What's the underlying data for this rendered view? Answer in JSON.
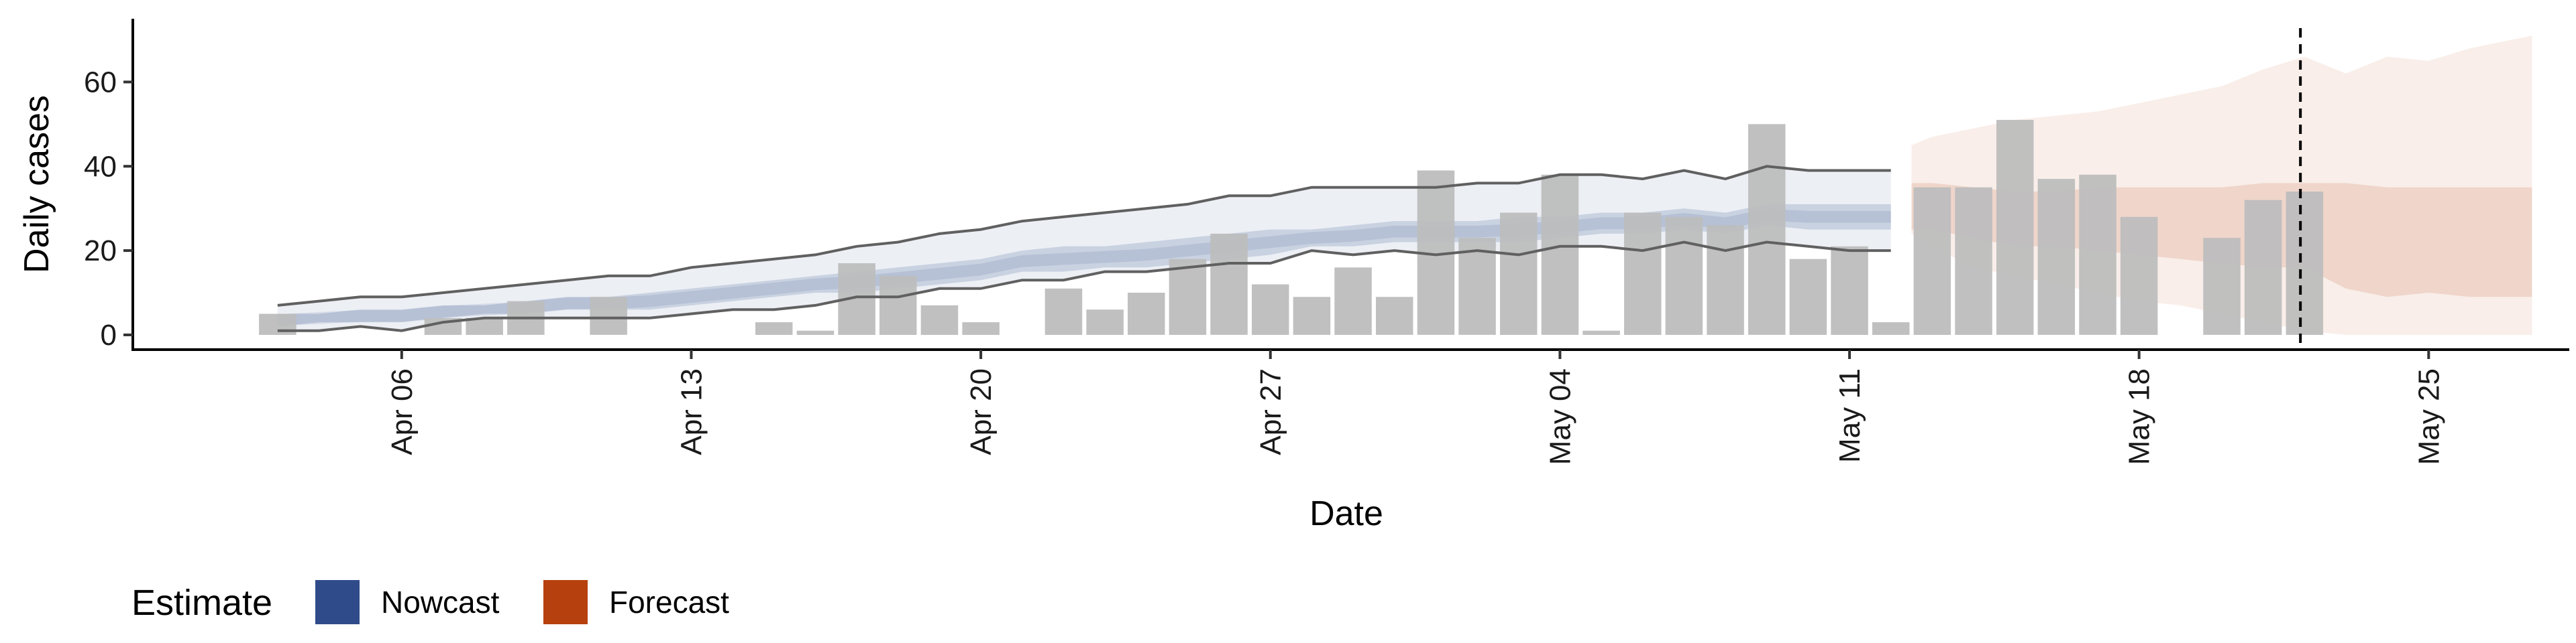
{
  "chart_data": {
    "type": "bar",
    "xlabel": "Date",
    "ylabel": "Daily cases",
    "ylim": [
      -3.5,
      75
    ],
    "yticks": [
      0,
      20,
      40,
      60
    ],
    "xticks": [
      {
        "day": 6,
        "label": "Apr 06"
      },
      {
        "day": 13,
        "label": "Apr 13"
      },
      {
        "day": 20,
        "label": "Apr 20"
      },
      {
        "day": 27,
        "label": "Apr 27"
      },
      {
        "day": 34,
        "label": "May 04"
      },
      {
        "day": 41,
        "label": "May 11"
      },
      {
        "day": 48,
        "label": "May 18"
      },
      {
        "day": 55,
        "label": "May 25"
      }
    ],
    "x_range_days": [
      -0.5,
      58.4
    ],
    "forecast_date_day": 51.9,
    "grid": false,
    "legend_position": "bottom-left",
    "colors": {
      "bars": "#bdbdbd",
      "nowcast": "#2f4b8a",
      "forecast": "#b7410e",
      "outline": "#606060",
      "vline": "#000000"
    },
    "daily_cases": [
      {
        "day": 3,
        "value": 5
      },
      {
        "day": 4,
        "value": 0
      },
      {
        "day": 5,
        "value": 0
      },
      {
        "day": 6,
        "value": 0
      },
      {
        "day": 7,
        "value": 4
      },
      {
        "day": 8,
        "value": 4
      },
      {
        "day": 9,
        "value": 8
      },
      {
        "day": 10,
        "value": 0
      },
      {
        "day": 11,
        "value": 9
      },
      {
        "day": 12,
        "value": 0
      },
      {
        "day": 13,
        "value": 0
      },
      {
        "day": 14,
        "value": 0
      },
      {
        "day": 15,
        "value": 3
      },
      {
        "day": 16,
        "value": 1
      },
      {
        "day": 17,
        "value": 17
      },
      {
        "day": 18,
        "value": 14
      },
      {
        "day": 19,
        "value": 7
      },
      {
        "day": 20,
        "value": 3
      },
      {
        "day": 21,
        "value": 0
      },
      {
        "day": 22,
        "value": 11
      },
      {
        "day": 23,
        "value": 6
      },
      {
        "day": 24,
        "value": 10
      },
      {
        "day": 25,
        "value": 18
      },
      {
        "day": 26,
        "value": 24
      },
      {
        "day": 27,
        "value": 12
      },
      {
        "day": 28,
        "value": 9
      },
      {
        "day": 29,
        "value": 16
      },
      {
        "day": 30,
        "value": 9
      },
      {
        "day": 31,
        "value": 39
      },
      {
        "day": 32,
        "value": 23
      },
      {
        "day": 33,
        "value": 29
      },
      {
        "day": 34,
        "value": 38
      },
      {
        "day": 35,
        "value": 1
      },
      {
        "day": 36,
        "value": 29
      },
      {
        "day": 37,
        "value": 28
      },
      {
        "day": 38,
        "value": 26
      },
      {
        "day": 39,
        "value": 50
      },
      {
        "day": 40,
        "value": 18
      },
      {
        "day": 41,
        "value": 21
      },
      {
        "day": 42,
        "value": 3
      },
      {
        "day": 43,
        "value": 35
      },
      {
        "day": 44,
        "value": 35
      },
      {
        "day": 45,
        "value": 51
      },
      {
        "day": 46,
        "value": 37
      },
      {
        "day": 47,
        "value": 38
      },
      {
        "day": 48,
        "value": 28
      },
      {
        "day": 49,
        "value": 0
      },
      {
        "day": 50,
        "value": 23
      },
      {
        "day": 51,
        "value": 32
      },
      {
        "day": 52,
        "value": 34
      }
    ],
    "nowcast": {
      "days": [
        3,
        4,
        5,
        6,
        7,
        8,
        9,
        10,
        11,
        12,
        13,
        14,
        15,
        16,
        17,
        18,
        19,
        20,
        21,
        22,
        23,
        24,
        25,
        26,
        27,
        28,
        29,
        30,
        31,
        32,
        33,
        34,
        35,
        36,
        37,
        38,
        39,
        40,
        41,
        42
      ],
      "outer_upper": [
        7,
        8,
        9,
        9,
        10,
        11,
        12,
        13,
        14,
        14,
        16,
        17,
        18,
        19,
        21,
        22,
        24,
        25,
        27,
        28,
        29,
        30,
        31,
        33,
        33,
        35,
        35,
        35,
        35,
        36,
        36,
        38,
        38,
        37,
        39,
        37,
        40,
        39,
        39,
        39
      ],
      "outer_lower": [
        1,
        1,
        2,
        1,
        3,
        4,
        4,
        4,
        4,
        4,
        5,
        6,
        6,
        7,
        9,
        9,
        11,
        11,
        13,
        13,
        15,
        15,
        16,
        17,
        17,
        20,
        19,
        20,
        19,
        20,
        19,
        21,
        21,
        20,
        22,
        20,
        22,
        21,
        20,
        20
      ],
      "inner_upper": [
        5,
        5,
        6,
        6,
        7,
        7,
        8,
        9,
        9,
        10,
        11,
        12,
        13,
        14,
        15,
        16,
        17,
        18,
        20,
        21,
        21,
        22,
        23,
        24,
        25,
        25,
        26,
        27,
        27,
        27,
        28,
        28,
        29,
        29,
        30,
        29,
        31,
        31,
        31,
        31
      ],
      "inner_lower": [
        2,
        3,
        3,
        3,
        4,
        5,
        5,
        6,
        6,
        6,
        7,
        8,
        9,
        10,
        10,
        11,
        12,
        13,
        15,
        15,
        16,
        16,
        17,
        18,
        19,
        21,
        21,
        22,
        22,
        22,
        22,
        23,
        24,
        24,
        25,
        24,
        26,
        25,
        25,
        25
      ],
      "median": [
        3.5,
        4,
        4.5,
        4.5,
        5.5,
        6,
        6.5,
        7.5,
        7.5,
        8,
        9,
        10,
        11,
        12,
        12.5,
        13.5,
        14.5,
        15.5,
        17.5,
        18,
        18.5,
        19,
        20,
        21,
        22,
        23,
        23.5,
        24.5,
        24.5,
        24.5,
        25,
        25.5,
        26.5,
        26.5,
        27.5,
        26.5,
        28.5,
        28,
        28,
        28
      ]
    },
    "forecast": {
      "days": [
        42.5,
        43,
        44,
        45,
        46,
        47,
        48,
        49,
        50,
        51,
        52,
        53,
        54,
        55,
        56,
        57,
        57.5
      ],
      "outer_upper": [
        45,
        47,
        49,
        51,
        52,
        53,
        55,
        57,
        59,
        63,
        66,
        62,
        66,
        65,
        68,
        70,
        71
      ],
      "outer_lower": [
        24,
        21,
        16,
        14,
        12,
        10,
        8,
        7,
        5,
        3,
        1,
        0,
        0,
        0,
        0,
        0,
        0
      ],
      "inner_upper": [
        36,
        36,
        35,
        34,
        34,
        35,
        35,
        35,
        35,
        36,
        36,
        36,
        35,
        35,
        35,
        35,
        35
      ],
      "inner_lower": [
        25,
        25,
        23,
        21,
        21,
        20,
        19,
        18,
        17,
        16,
        16,
        11,
        9,
        10,
        9,
        9,
        9
      ]
    },
    "legend": {
      "title": "Estimate",
      "items": [
        {
          "label": "Nowcast",
          "color": "#2f4b8a"
        },
        {
          "label": "Forecast",
          "color": "#b7410e"
        }
      ]
    }
  }
}
